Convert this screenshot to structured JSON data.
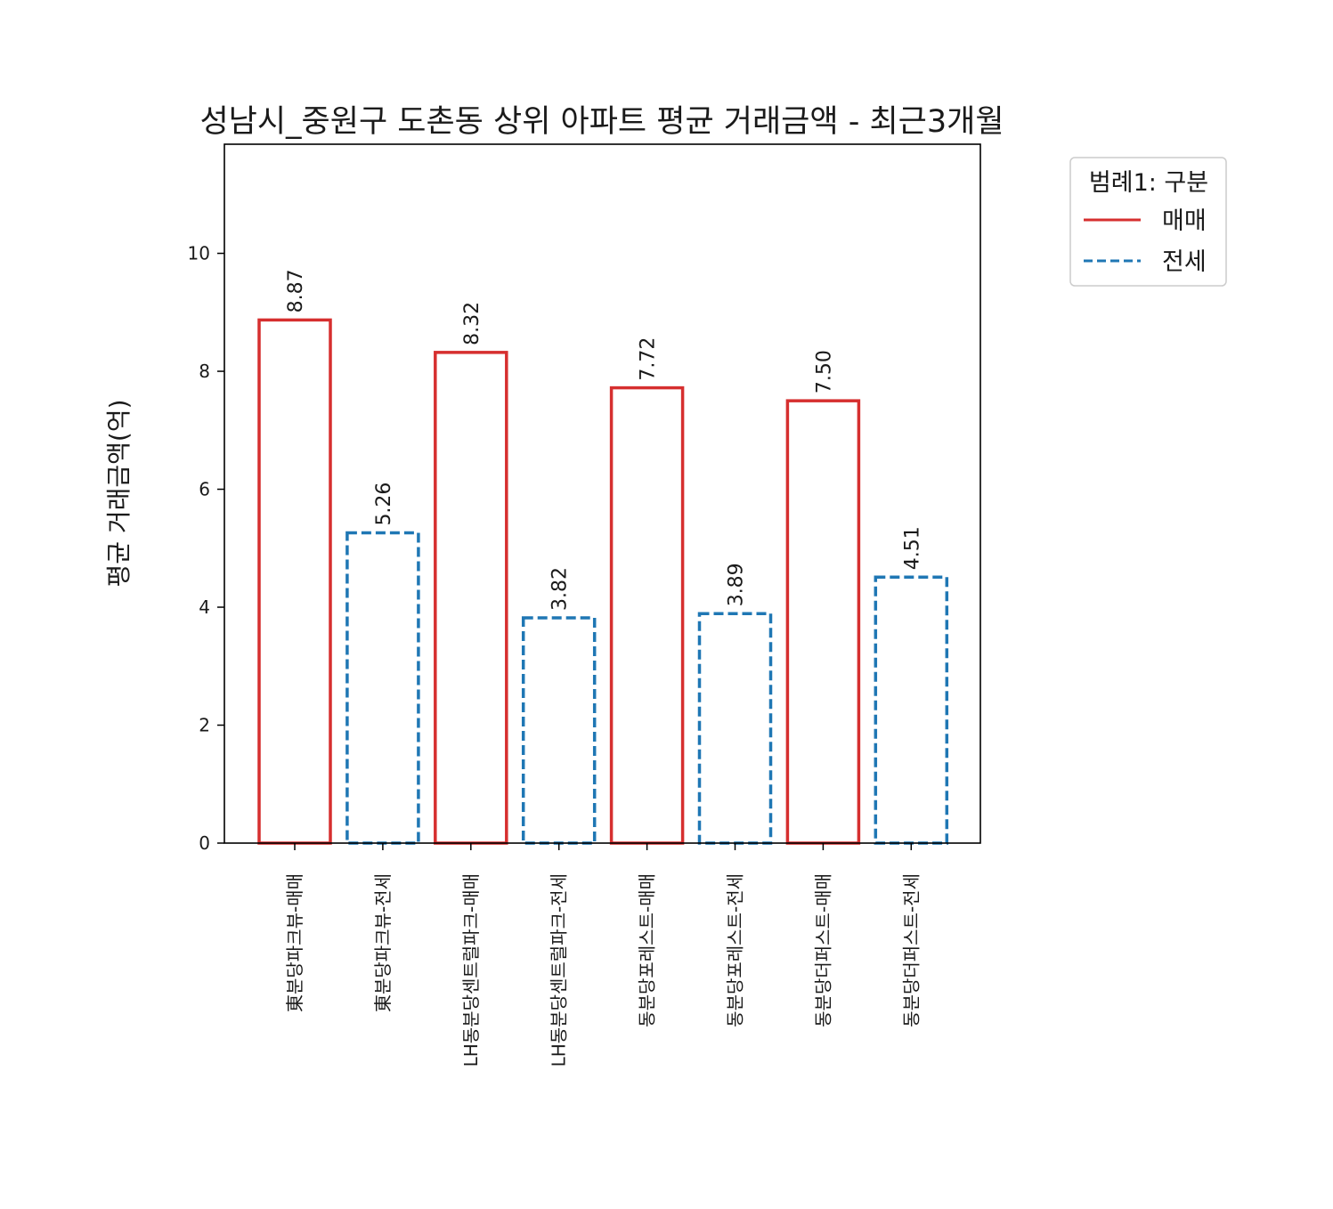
{
  "chart_data": {
    "type": "bar",
    "title": "성남시_중원구 도촌동 상위 아파트 평균 거래금액 - 최근3개월",
    "xlabel": "",
    "ylabel": "평균 거래금액(억)",
    "ylim": [
      0,
      11.85
    ],
    "yticks": [
      0,
      2,
      4,
      6,
      8,
      10
    ],
    "ytick_labels": [
      "0",
      "2",
      "4",
      "6",
      "8",
      "10"
    ],
    "grid": false,
    "categories": [
      "東분당파크뷰-매매",
      "東분당파크뷰-전세",
      "LH동분당센트럴파크-매매",
      "LH동분당센트럴파크-전세",
      "동분당포레스트-매매",
      "동분당포레스트-전세",
      "동분당더퍼스트-매매",
      "동분당더퍼스트-전세"
    ],
    "values": [
      8.87,
      5.26,
      8.32,
      3.82,
      7.72,
      3.89,
      7.5,
      4.51
    ],
    "value_labels": [
      "8.87",
      "5.26",
      "8.32",
      "3.82",
      "7.72",
      "3.89",
      "7.50",
      "4.51"
    ],
    "bar_series": [
      "매매",
      "전세",
      "매매",
      "전세",
      "매매",
      "전세",
      "매매",
      "전세"
    ],
    "legend": {
      "title": "범례1: 구분",
      "placement": "outside-top-right",
      "entries": [
        {
          "name": "매매",
          "color": "#d62f2f",
          "style": "solid"
        },
        {
          "name": "전세",
          "color": "#1f77b4",
          "style": "dashed"
        }
      ]
    },
    "colors": {
      "매매": "#d62f2f",
      "전세": "#1f77b4"
    }
  }
}
